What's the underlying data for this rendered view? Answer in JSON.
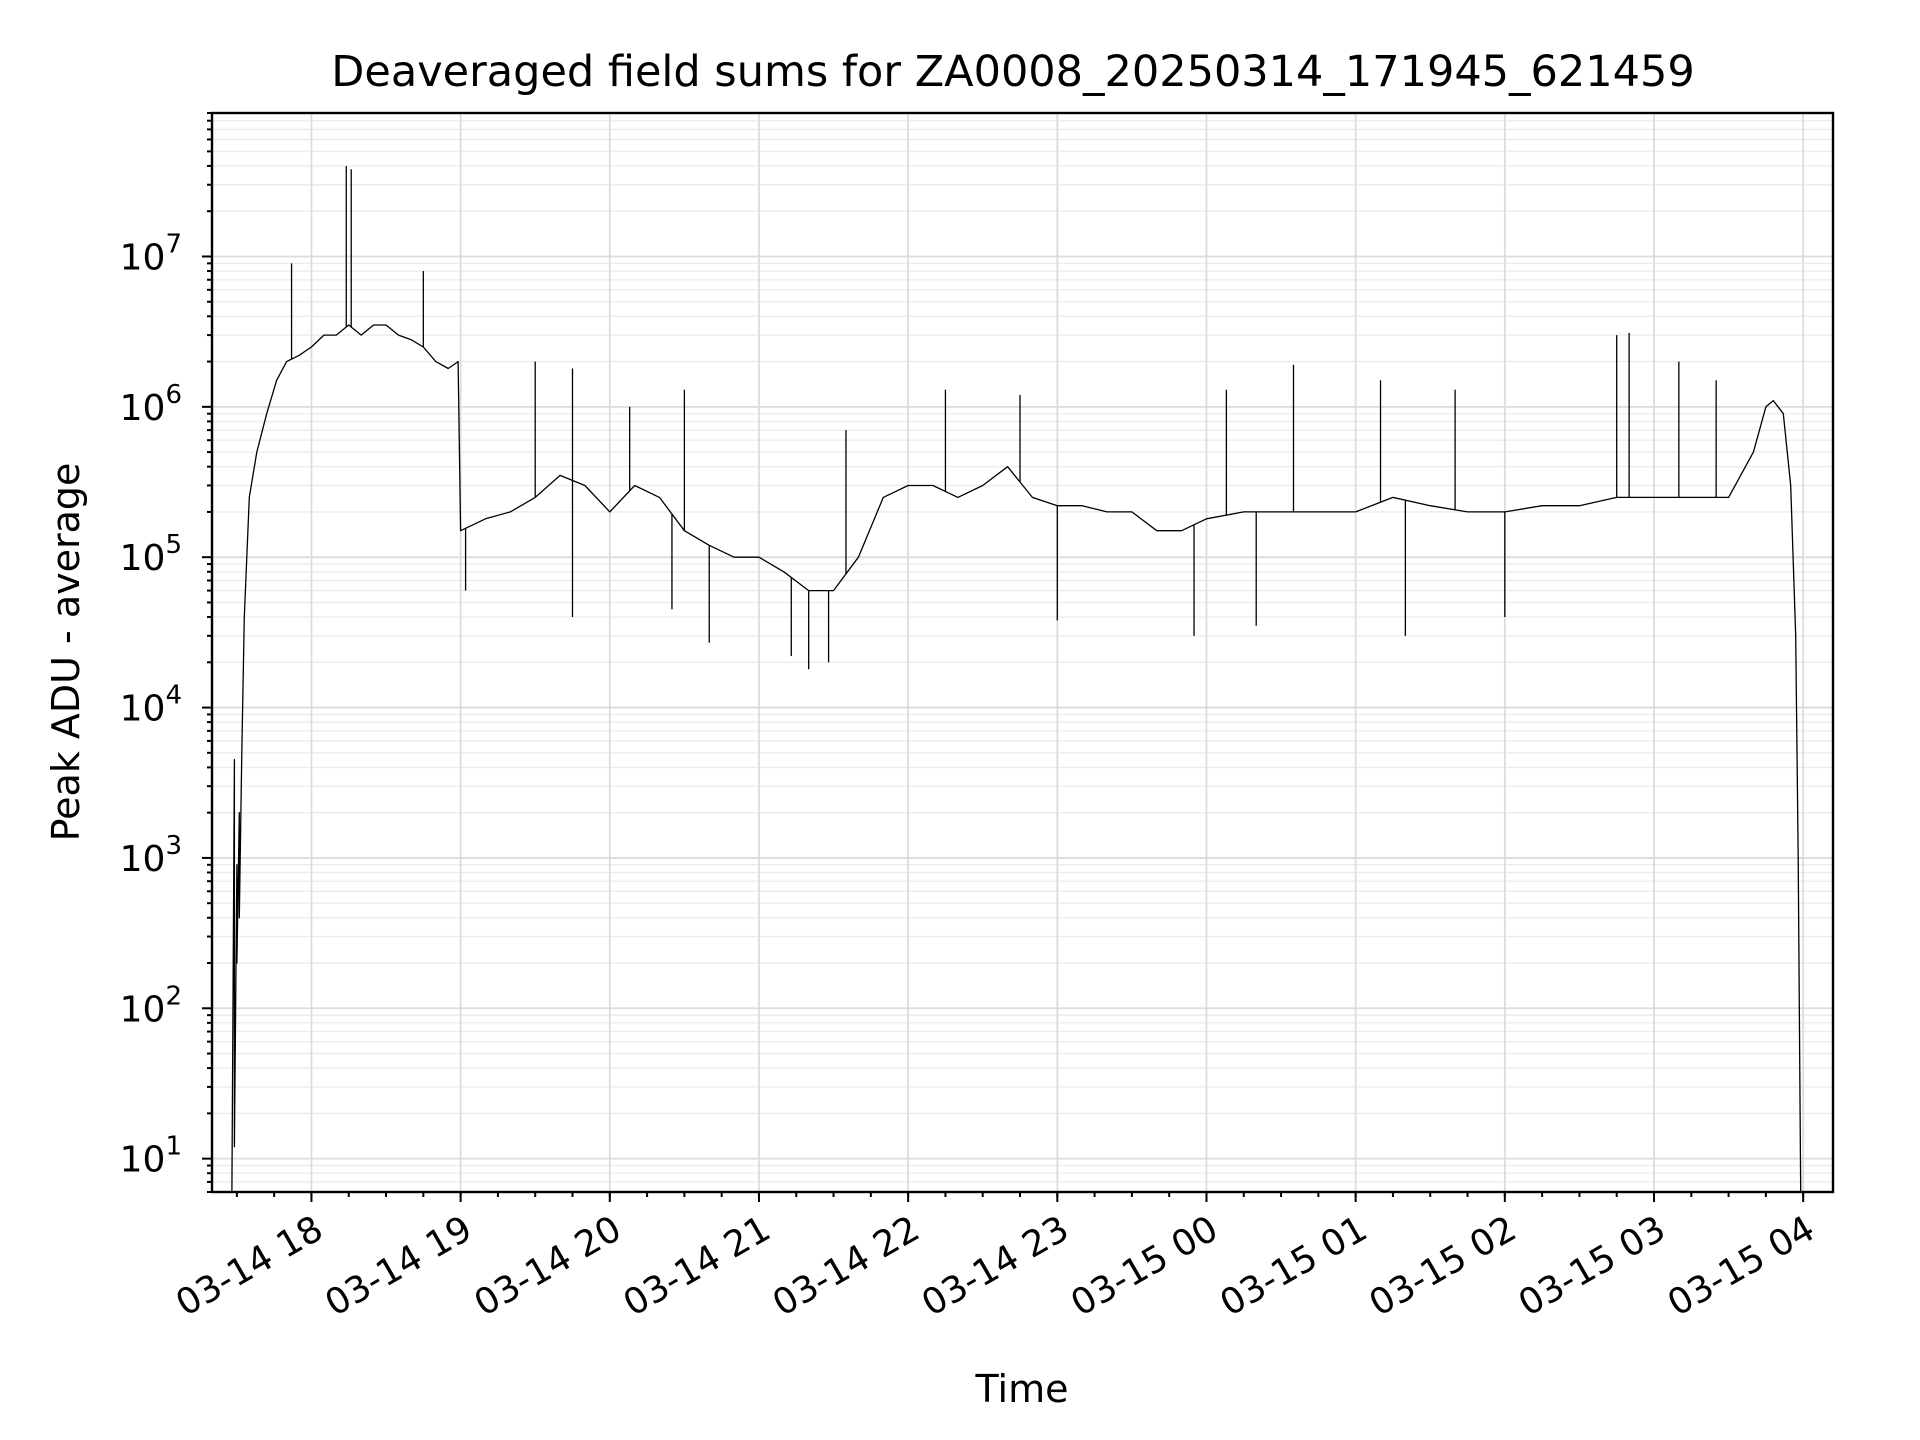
{
  "chart_data": {
    "type": "line",
    "title": "Deaveraged field sums for ZA0008_20250314_171945_621459",
    "xlabel": "Time",
    "ylabel": "Peak ADU - average",
    "yscale": "log",
    "xlim": [
      "2025-03-14T17:20",
      "2025-03-15T04:12"
    ],
    "ylim": [
      6,
      90000000
    ],
    "grid": true,
    "grid_minor": true,
    "line_color": "#000000",
    "x_ticks": [
      {
        "value": "2025-03-14T18:00",
        "label": "03-14 18"
      },
      {
        "value": "2025-03-14T19:00",
        "label": "03-14 19"
      },
      {
        "value": "2025-03-14T20:00",
        "label": "03-14 20"
      },
      {
        "value": "2025-03-14T21:00",
        "label": "03-14 21"
      },
      {
        "value": "2025-03-14T22:00",
        "label": "03-14 22"
      },
      {
        "value": "2025-03-14T23:00",
        "label": "03-14 23"
      },
      {
        "value": "2025-03-15T00:00",
        "label": "03-15 00"
      },
      {
        "value": "2025-03-15T01:00",
        "label": "03-15 01"
      },
      {
        "value": "2025-03-15T02:00",
        "label": "03-15 02"
      },
      {
        "value": "2025-03-15T03:00",
        "label": "03-15 03"
      },
      {
        "value": "2025-03-15T04:00",
        "label": "03-15 04"
      }
    ],
    "y_ticks": [
      {
        "value": 10,
        "base": "10",
        "exp": "1"
      },
      {
        "value": 100,
        "base": "10",
        "exp": "2"
      },
      {
        "value": 1000,
        "base": "10",
        "exp": "3"
      },
      {
        "value": 10000,
        "base": "10",
        "exp": "4"
      },
      {
        "value": 100000,
        "base": "10",
        "exp": "5"
      },
      {
        "value": 1000000,
        "base": "10",
        "exp": "6"
      },
      {
        "value": 10000000,
        "base": "10",
        "exp": "7"
      }
    ],
    "series": [
      {
        "points": [
          [
            "2025-03-14T17:28",
            6
          ],
          [
            "2025-03-14T17:29",
            4500
          ],
          [
            "2025-03-14T17:29",
            12
          ],
          [
            "2025-03-14T17:30",
            900
          ],
          [
            "2025-03-14T17:30",
            200
          ],
          [
            "2025-03-14T17:31",
            2000
          ],
          [
            "2025-03-14T17:31",
            400
          ],
          [
            "2025-03-14T17:32",
            5000
          ],
          [
            "2025-03-14T17:33",
            40000
          ],
          [
            "2025-03-14T17:35",
            250000
          ],
          [
            "2025-03-14T17:38",
            500000
          ],
          [
            "2025-03-14T17:42",
            900000
          ],
          [
            "2025-03-14T17:46",
            1500000
          ],
          [
            "2025-03-14T17:50",
            2000000
          ],
          [
            "2025-03-14T17:55",
            2200000
          ],
          [
            "2025-03-14T18:00",
            2500000
          ],
          [
            "2025-03-14T18:05",
            3000000
          ],
          [
            "2025-03-14T18:10",
            3000000
          ],
          [
            "2025-03-14T18:15",
            3500000
          ],
          [
            "2025-03-14T18:20",
            3000000
          ],
          [
            "2025-03-14T18:25",
            3500000
          ],
          [
            "2025-03-14T18:30",
            3500000
          ],
          [
            "2025-03-14T18:35",
            3000000
          ],
          [
            "2025-03-14T18:40",
            2800000
          ],
          [
            "2025-03-14T18:45",
            2500000
          ],
          [
            "2025-03-14T18:50",
            2000000
          ],
          [
            "2025-03-14T18:55",
            1800000
          ],
          [
            "2025-03-14T18:59",
            2000000
          ],
          [
            "2025-03-14T19:00",
            150000
          ],
          [
            "2025-03-14T19:10",
            180000
          ],
          [
            "2025-03-14T19:20",
            200000
          ],
          [
            "2025-03-14T19:30",
            250000
          ],
          [
            "2025-03-14T19:40",
            350000
          ],
          [
            "2025-03-14T19:50",
            300000
          ],
          [
            "2025-03-14T20:00",
            200000
          ],
          [
            "2025-03-14T20:10",
            300000
          ],
          [
            "2025-03-14T20:20",
            250000
          ],
          [
            "2025-03-14T20:30",
            150000
          ],
          [
            "2025-03-14T20:40",
            120000
          ],
          [
            "2025-03-14T20:50",
            100000
          ],
          [
            "2025-03-14T21:00",
            100000
          ],
          [
            "2025-03-14T21:10",
            80000
          ],
          [
            "2025-03-14T21:20",
            60000
          ],
          [
            "2025-03-14T21:30",
            60000
          ],
          [
            "2025-03-14T21:40",
            100000
          ],
          [
            "2025-03-14T21:50",
            250000
          ],
          [
            "2025-03-14T22:00",
            300000
          ],
          [
            "2025-03-14T22:10",
            300000
          ],
          [
            "2025-03-14T22:20",
            250000
          ],
          [
            "2025-03-14T22:30",
            300000
          ],
          [
            "2025-03-14T22:40",
            400000
          ],
          [
            "2025-03-14T22:50",
            250000
          ],
          [
            "2025-03-14T23:00",
            220000
          ],
          [
            "2025-03-14T23:10",
            220000
          ],
          [
            "2025-03-14T23:20",
            200000
          ],
          [
            "2025-03-14T23:30",
            200000
          ],
          [
            "2025-03-14T23:40",
            150000
          ],
          [
            "2025-03-14T23:50",
            150000
          ],
          [
            "2025-03-15T00:00",
            180000
          ],
          [
            "2025-03-15T00:15",
            200000
          ],
          [
            "2025-03-15T00:30",
            200000
          ],
          [
            "2025-03-15T00:45",
            200000
          ],
          [
            "2025-03-15T01:00",
            200000
          ],
          [
            "2025-03-15T01:15",
            250000
          ],
          [
            "2025-03-15T01:30",
            220000
          ],
          [
            "2025-03-15T01:45",
            200000
          ],
          [
            "2025-03-15T02:00",
            200000
          ],
          [
            "2025-03-15T02:15",
            220000
          ],
          [
            "2025-03-15T02:30",
            220000
          ],
          [
            "2025-03-15T02:45",
            250000
          ],
          [
            "2025-03-15T03:00",
            250000
          ],
          [
            "2025-03-15T03:15",
            250000
          ],
          [
            "2025-03-15T03:30",
            250000
          ],
          [
            "2025-03-15T03:40",
            500000
          ],
          [
            "2025-03-15T03:45",
            1000000
          ],
          [
            "2025-03-15T03:48",
            1100000
          ],
          [
            "2025-03-15T03:52",
            900000
          ],
          [
            "2025-03-15T03:55",
            300000
          ],
          [
            "2025-03-15T03:57",
            30000
          ],
          [
            "2025-03-15T03:58",
            1000
          ],
          [
            "2025-03-15T03:59",
            6
          ]
        ],
        "spikes": [
          [
            "2025-03-14T17:52",
            9000000
          ],
          [
            "2025-03-14T18:14",
            40000000
          ],
          [
            "2025-03-14T18:16",
            38000000
          ],
          [
            "2025-03-14T18:45",
            8000000
          ],
          [
            "2025-03-14T19:30",
            2000000
          ],
          [
            "2025-03-14T19:45",
            1800000
          ],
          [
            "2025-03-14T20:08",
            1000000
          ],
          [
            "2025-03-14T20:30",
            1300000
          ],
          [
            "2025-03-14T21:35",
            700000
          ],
          [
            "2025-03-14T22:15",
            1300000
          ],
          [
            "2025-03-14T22:45",
            1200000
          ],
          [
            "2025-03-15T00:08",
            1300000
          ],
          [
            "2025-03-15T00:35",
            1900000
          ],
          [
            "2025-03-15T01:10",
            1500000
          ],
          [
            "2025-03-15T01:40",
            1300000
          ],
          [
            "2025-03-15T02:45",
            3000000
          ],
          [
            "2025-03-15T02:50",
            3100000
          ],
          [
            "2025-03-15T03:10",
            2000000
          ],
          [
            "2025-03-15T03:25",
            1500000
          ]
        ],
        "dips": [
          [
            "2025-03-14T19:02",
            60000
          ],
          [
            "2025-03-14T19:45",
            40000
          ],
          [
            "2025-03-14T20:25",
            45000
          ],
          [
            "2025-03-14T20:40",
            27000
          ],
          [
            "2025-03-14T21:13",
            22000
          ],
          [
            "2025-03-14T21:20",
            18000
          ],
          [
            "2025-03-14T21:28",
            20000
          ],
          [
            "2025-03-14T23:00",
            38000
          ],
          [
            "2025-03-14T23:55",
            30000
          ],
          [
            "2025-03-15T00:20",
            35000
          ],
          [
            "2025-03-15T01:20",
            30000
          ],
          [
            "2025-03-15T02:00",
            40000
          ]
        ]
      }
    ]
  }
}
